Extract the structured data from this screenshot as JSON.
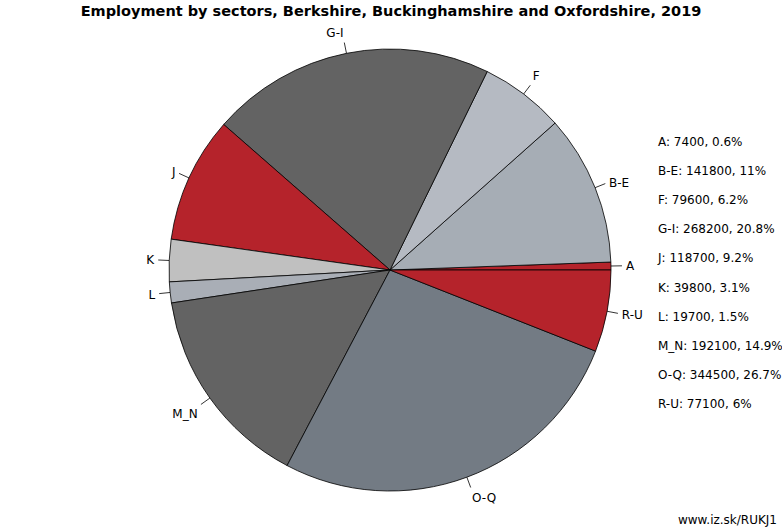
{
  "chart_data": {
    "type": "pie",
    "title": "Employment by sectors, Berkshire, Buckinghamshire and Oxfordshire, 2019",
    "categories": [
      "A",
      "B-E",
      "F",
      "G-I",
      "J",
      "K",
      "L",
      "M_N",
      "O-Q",
      "R-U"
    ],
    "values": [
      7400,
      141800,
      79600,
      268200,
      118700,
      39800,
      19700,
      192100,
      344500,
      77100
    ],
    "value_labels": [
      "A: 7400, 0.6%",
      "B-E: 141800, 11%",
      "F: 79600, 6.2%",
      "G-I: 268200, 20.8%",
      "J: 118700, 9.2%",
      "K: 39800, 3.1%",
      "L: 19700, 1.5%",
      "M_N: 192100, 14.9%",
      "O-Q: 344500, 26.7%",
      "R-U: 77100, 6%"
    ],
    "colors": [
      "#b5232b",
      "#a6adb5",
      "#b5bac2",
      "#636363",
      "#b5232b",
      "#c0c0c0",
      "#a9aeb6",
      "#636363",
      "#737b84",
      "#b5232b"
    ],
    "legend": "right",
    "source": "www.iz.sk/RUKJ1"
  }
}
